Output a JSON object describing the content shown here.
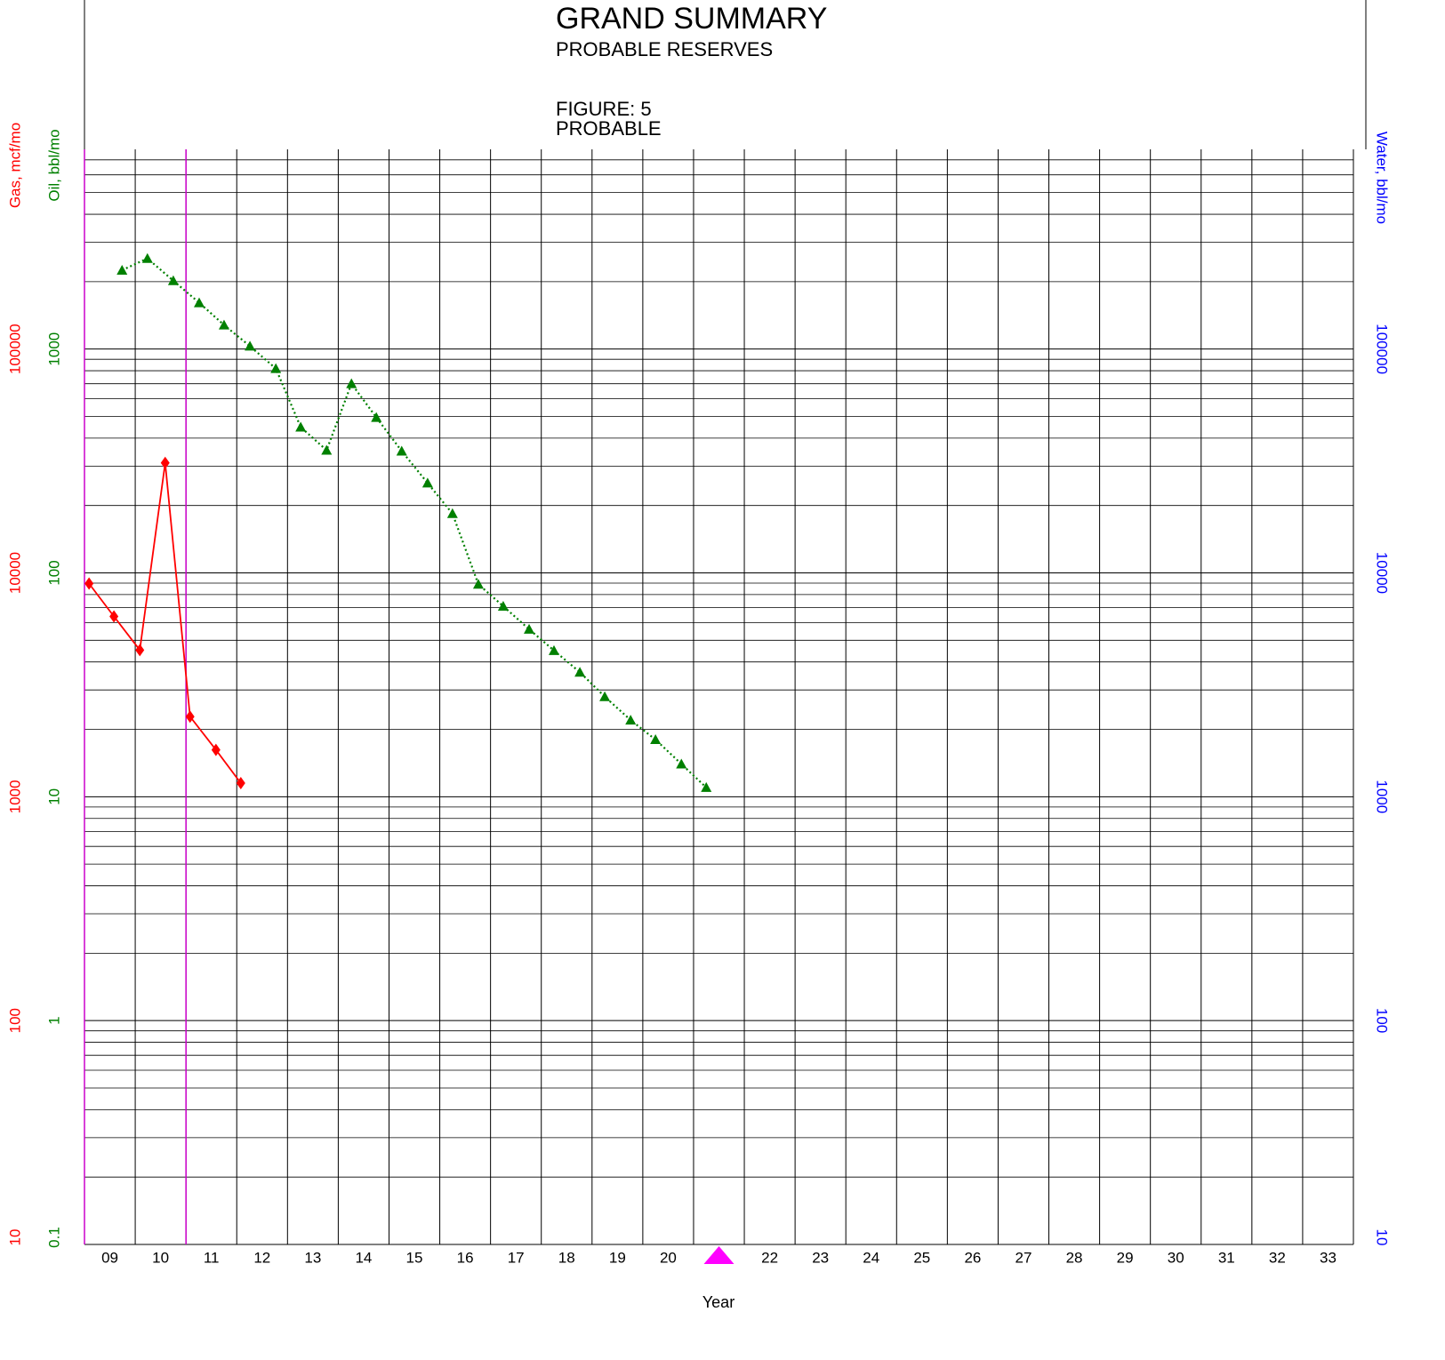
{
  "chart_data": {
    "type": "line",
    "title": "GRAND SUMMARY",
    "subtitle": "PROBABLE RESERVES",
    "figure_label": "FIGURE: 5",
    "figure_case": "PROBABLE",
    "x_label": "Year",
    "y_label": "Oil, bbl/mo",
    "y2_label": "Gas, mcf/mo",
    "y3_label": "Water, bbl/mo",
    "log_scale": true,
    "grid": true,
    "y_color": "#008000",
    "y2_color": "#ff0000",
    "y3_color": "#0000ff",
    "xlim": [
      9,
      34
    ],
    "xticks": [
      {
        "value": 9.5,
        "label": "09"
      },
      {
        "value": 10.5,
        "label": "10"
      },
      {
        "value": 11.5,
        "label": "11"
      },
      {
        "value": 12.5,
        "label": "12"
      },
      {
        "value": 13.5,
        "label": "13"
      },
      {
        "value": 14.5,
        "label": "14"
      },
      {
        "value": 15.5,
        "label": "15"
      },
      {
        "value": 16.5,
        "label": "16"
      },
      {
        "value": 17.5,
        "label": "17"
      },
      {
        "value": 18.5,
        "label": "18"
      },
      {
        "value": 19.5,
        "label": "19"
      },
      {
        "value": 20.5,
        "label": "20"
      },
      {
        "value": 22.5,
        "label": "22"
      },
      {
        "value": 23.5,
        "label": "23"
      },
      {
        "value": 24.5,
        "label": "24"
      },
      {
        "value": 25.5,
        "label": "25"
      },
      {
        "value": 26.5,
        "label": "26"
      },
      {
        "value": 27.5,
        "label": "27"
      },
      {
        "value": 28.5,
        "label": "28"
      },
      {
        "value": 29.5,
        "label": "29"
      },
      {
        "value": 30.5,
        "label": "30"
      },
      {
        "value": 31.5,
        "label": "31"
      },
      {
        "value": 32.5,
        "label": "32"
      },
      {
        "value": 33.5,
        "label": "33"
      }
    ],
    "xgrid": [
      9,
      10,
      11,
      12,
      13,
      14,
      15,
      16,
      17,
      18,
      19,
      20,
      21,
      22,
      23,
      24,
      25,
      26,
      27,
      28,
      29,
      30,
      31,
      32,
      33,
      34
    ],
    "vlines": [
      9,
      11
    ],
    "vline_color": "#cc00cc",
    "today_marker": 21.5,
    "today_color": "#ff00ff",
    "ylim": [
      0.1,
      7800
    ],
    "yticks": [
      0.1,
      1,
      10,
      100,
      1000
    ],
    "y2lim": [
      10,
      780000
    ],
    "y2ticks": [
      10,
      100,
      1000,
      10000,
      100000
    ],
    "y3lim": [
      10,
      780000
    ],
    "y3ticks": [
      10,
      100,
      1000,
      10000,
      100000
    ],
    "series": [
      {
        "color": "#008000",
        "marker": "triangle",
        "line_style": "dotted",
        "x": [
          9.74,
          10.24,
          10.75,
          11.26,
          11.75,
          12.26,
          12.77,
          13.26,
          13.77,
          14.26,
          14.75,
          15.25,
          15.76,
          16.25,
          16.76,
          17.25,
          17.76,
          18.25,
          18.76,
          19.25,
          19.76,
          20.25,
          20.76,
          21.25
        ],
        "values": [
          2250,
          2540,
          2020,
          1610,
          1280,
          1030,
          818,
          448,
          353,
          700,
          495,
          350,
          252,
          184,
          89,
          71,
          56,
          45,
          36,
          28,
          22,
          18,
          14,
          11
        ]
      },
      {
        "color": "#ff0000",
        "marker": "diamond",
        "line_style": "solid",
        "axis": "y2",
        "x": [
          9.09,
          9.58,
          10.09,
          10.59,
          11.08,
          11.59,
          12.08
        ],
        "values": [
          8960,
          6390,
          4520,
          31000,
          2280,
          1620,
          1150
        ]
      }
    ]
  }
}
